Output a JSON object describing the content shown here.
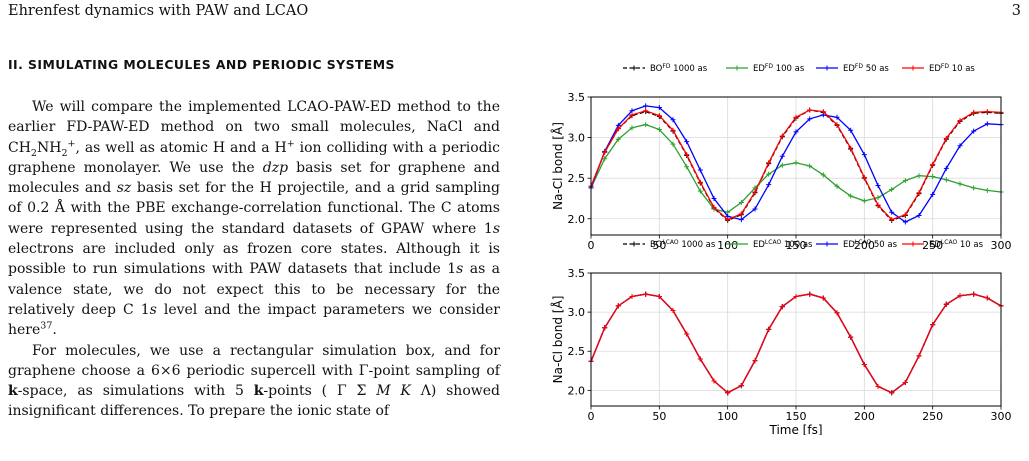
{
  "header": {
    "title": "Ehrenfest dynamics with PAW and LCAO",
    "page_number": "3"
  },
  "section": {
    "title": "II.   SIMULATING MOLECULES AND PERIODIC SYSTEMS"
  },
  "chart_data": [
    {
      "type": "line",
      "xlabel": "",
      "ylabel": "Na-Cl bond [Å]",
      "xlim": [
        0,
        300
      ],
      "ylim": [
        1.8,
        3.5
      ],
      "xticks": [
        0,
        50,
        100,
        150,
        200,
        250,
        300
      ],
      "yticks": [
        2.0,
        2.5,
        3.0,
        3.5
      ],
      "grid": true,
      "legend_position": "top",
      "series": [
        {
          "name": "BO^FD 1000 as",
          "color": "#000000",
          "style": "dashed",
          "marker": "+",
          "x": [
            0,
            10,
            20,
            30,
            40,
            50,
            60,
            70,
            80,
            90,
            100,
            110,
            120,
            130,
            140,
            150,
            160,
            170,
            180,
            190,
            200,
            210,
            220,
            230,
            240,
            250,
            260,
            270,
            280,
            290,
            300
          ],
          "y": [
            2.4,
            2.82,
            3.11,
            3.27,
            3.32,
            3.26,
            3.08,
            2.78,
            2.44,
            2.13,
            1.98,
            2.05,
            2.32,
            2.68,
            3.01,
            3.24,
            3.34,
            3.31,
            3.15,
            2.86,
            2.5,
            2.16,
            1.98,
            2.04,
            2.31,
            2.66,
            2.98,
            3.2,
            3.3,
            3.31,
            3.3
          ]
        },
        {
          "name": "ED^FD 100 as",
          "color": "#2ca02c",
          "style": "solid",
          "marker": "+",
          "x": [
            0,
            10,
            20,
            30,
            40,
            50,
            60,
            70,
            80,
            90,
            100,
            110,
            120,
            130,
            140,
            150,
            160,
            170,
            180,
            190,
            200,
            210,
            220,
            230,
            240,
            250,
            260,
            270,
            280,
            290,
            300
          ],
          "y": [
            2.38,
            2.74,
            2.98,
            3.12,
            3.16,
            3.1,
            2.92,
            2.64,
            2.34,
            2.12,
            2.08,
            2.2,
            2.38,
            2.55,
            2.66,
            2.69,
            2.65,
            2.54,
            2.4,
            2.28,
            2.22,
            2.26,
            2.36,
            2.47,
            2.53,
            2.52,
            2.48,
            2.43,
            2.38,
            2.35,
            2.33
          ]
        },
        {
          "name": "ED^FD 50 as",
          "color": "#0000ff",
          "style": "solid",
          "marker": "+",
          "x": [
            0,
            10,
            20,
            30,
            40,
            50,
            60,
            70,
            80,
            90,
            100,
            110,
            120,
            130,
            140,
            150,
            160,
            170,
            180,
            190,
            200,
            210,
            220,
            230,
            240,
            250,
            260,
            270,
            280,
            290,
            300
          ],
          "y": [
            2.38,
            2.83,
            3.15,
            3.33,
            3.39,
            3.37,
            3.22,
            2.95,
            2.6,
            2.25,
            2.03,
            1.99,
            2.12,
            2.42,
            2.77,
            3.07,
            3.23,
            3.28,
            3.25,
            3.09,
            2.79,
            2.41,
            2.08,
            1.96,
            2.04,
            2.3,
            2.62,
            2.9,
            3.08,
            3.17,
            3.16
          ]
        },
        {
          "name": "ED^FD 10 as",
          "color": "#ff0000",
          "style": "solid",
          "marker": "+",
          "x": [
            0,
            10,
            20,
            30,
            40,
            50,
            60,
            70,
            80,
            90,
            100,
            110,
            120,
            130,
            140,
            150,
            160,
            170,
            180,
            190,
            200,
            210,
            220,
            230,
            240,
            250,
            260,
            270,
            280,
            290,
            300
          ],
          "y": [
            2.4,
            2.82,
            3.11,
            3.28,
            3.33,
            3.27,
            3.09,
            2.79,
            2.45,
            2.14,
            1.99,
            2.06,
            2.33,
            2.69,
            3.02,
            3.25,
            3.34,
            3.32,
            3.16,
            2.87,
            2.51,
            2.17,
            1.99,
            2.05,
            2.32,
            2.67,
            2.99,
            3.21,
            3.31,
            3.32,
            3.31
          ]
        }
      ]
    },
    {
      "type": "line",
      "xlabel": "Time [fs]",
      "ylabel": "Na-Cl bond [Å]",
      "xlim": [
        0,
        300
      ],
      "ylim": [
        1.8,
        3.5
      ],
      "xticks": [
        0,
        50,
        100,
        150,
        200,
        250,
        300
      ],
      "yticks": [
        2.0,
        2.5,
        3.0,
        3.5
      ],
      "grid": true,
      "legend_position": "top",
      "series": [
        {
          "name": "BO^LCAO 1000 as",
          "color": "#000000",
          "style": "dashed",
          "marker": "+",
          "x": [
            0,
            10,
            20,
            30,
            40,
            50,
            60,
            70,
            80,
            90,
            100,
            110,
            120,
            130,
            140,
            150,
            160,
            170,
            180,
            190,
            200,
            210,
            220,
            230,
            240,
            250,
            260,
            270,
            280,
            290,
            300
          ],
          "y": [
            2.37,
            2.8,
            3.08,
            3.2,
            3.23,
            3.2,
            3.02,
            2.72,
            2.4,
            2.12,
            1.97,
            2.06,
            2.38,
            2.78,
            3.07,
            3.2,
            3.23,
            3.18,
            2.99,
            2.68,
            2.33,
            2.05,
            1.97,
            2.1,
            2.44,
            2.84,
            3.1,
            3.21,
            3.23,
            3.18,
            3.08
          ]
        },
        {
          "name": "ED^LCAO 100 as",
          "color": "#2ca02c",
          "style": "solid",
          "marker": "+",
          "x": [
            0,
            10,
            20,
            30,
            40,
            50,
            60,
            70,
            80,
            90,
            100,
            110,
            120,
            130,
            140,
            150,
            160,
            170,
            180,
            190,
            200,
            210,
            220,
            230,
            240,
            250,
            260,
            270,
            280,
            290,
            300
          ],
          "y": [
            2.37,
            2.8,
            3.08,
            3.2,
            3.23,
            3.2,
            3.02,
            2.72,
            2.4,
            2.12,
            1.97,
            2.06,
            2.38,
            2.78,
            3.07,
            3.2,
            3.23,
            3.18,
            2.99,
            2.68,
            2.33,
            2.05,
            1.97,
            2.1,
            2.44,
            2.84,
            3.1,
            3.21,
            3.23,
            3.18,
            3.08
          ]
        },
        {
          "name": "ED^LCAO 50 as",
          "color": "#0000ff",
          "style": "solid",
          "marker": "+",
          "x": [
            0,
            10,
            20,
            30,
            40,
            50,
            60,
            70,
            80,
            90,
            100,
            110,
            120,
            130,
            140,
            150,
            160,
            170,
            180,
            190,
            200,
            210,
            220,
            230,
            240,
            250,
            260,
            270,
            280,
            290,
            300
          ],
          "y": [
            2.37,
            2.8,
            3.08,
            3.2,
            3.23,
            3.2,
            3.02,
            2.72,
            2.4,
            2.12,
            1.97,
            2.06,
            2.38,
            2.78,
            3.07,
            3.2,
            3.23,
            3.18,
            2.99,
            2.68,
            2.33,
            2.05,
            1.97,
            2.1,
            2.44,
            2.84,
            3.1,
            3.21,
            3.23,
            3.18,
            3.08
          ]
        },
        {
          "name": "ED^LCAO 10 as",
          "color": "#ff0000",
          "style": "solid",
          "marker": "+",
          "x": [
            0,
            10,
            20,
            30,
            40,
            50,
            60,
            70,
            80,
            90,
            100,
            110,
            120,
            130,
            140,
            150,
            160,
            170,
            180,
            190,
            200,
            210,
            220,
            230,
            240,
            250,
            260,
            270,
            280,
            290,
            300
          ],
          "y": [
            2.37,
            2.8,
            3.08,
            3.2,
            3.23,
            3.2,
            3.02,
            2.72,
            2.4,
            2.12,
            1.97,
            2.06,
            2.38,
            2.78,
            3.07,
            3.2,
            3.23,
            3.18,
            2.99,
            2.68,
            2.33,
            2.05,
            1.97,
            2.1,
            2.44,
            2.84,
            3.1,
            3.21,
            3.23,
            3.18,
            3.08
          ]
        }
      ]
    }
  ],
  "legend_labels": {
    "top": [
      {
        "base": "BO",
        "sup": "FD",
        "rest": " 1000 as"
      },
      {
        "base": "ED",
        "sup": "FD",
        "rest": " 100 as"
      },
      {
        "base": "ED",
        "sup": "FD",
        "rest": " 50 as"
      },
      {
        "base": "ED",
        "sup": "FD",
        "rest": " 10 as"
      }
    ],
    "bottom": [
      {
        "base": "BO",
        "sup": "LCAO",
        "rest": " 1000 as"
      },
      {
        "base": "ED",
        "sup": "LCAO",
        "rest": " 100 as"
      },
      {
        "base": "ED",
        "sup": "LCAO",
        "rest": " 50 as"
      },
      {
        "base": "ED",
        "sup": "LCAO",
        "rest": " 10 as"
      }
    ]
  },
  "paragraph1": {
    "t1": "We will compare the implemented LCAO-PAW-ED method to the earlier FD-PAW-ED method on two small molecules, NaCl and CH",
    "s1": "2",
    "t2": "NH",
    "s2": "2",
    "sp2": "+",
    "t3": ", as well as atomic H and a H",
    "sp3": "+",
    "t4": " ion colliding with a periodic graphene monolayer. We use the ",
    "i1": "dzp",
    "t5": " basis set for graphene and molecules and ",
    "i2": "sz",
    "t6": " basis set for the H projectile, and a grid sampling of 0.2 Å with the PBE exchange-correlation functional. The C atoms were represented using the standard datasets of GPAW where 1",
    "i3": "s",
    "t7": " electrons are included only as frozen core states. Although it is possible to run simulations with PAW datasets that include 1",
    "i4": "s",
    "t8": " as a valence state, we do not expect this to be necessary for the relatively deep C 1",
    "i5": "s",
    "t9": " level and the impact parameters we consider here",
    "ref": "37",
    "t10": "."
  },
  "paragraph2": {
    "t1": "For molecules, we use a rectangular simulation box, and for graphene choose a 6×6 periodic supercell with Γ-point sampling of ",
    "b1": "k",
    "t2": "-space, as simulations with 5 ",
    "b2": "k",
    "t3": "-points ( Γ Σ ",
    "i1": "M K",
    "t4": " Λ) showed insignificant differences. To prepare the ionic state of"
  }
}
